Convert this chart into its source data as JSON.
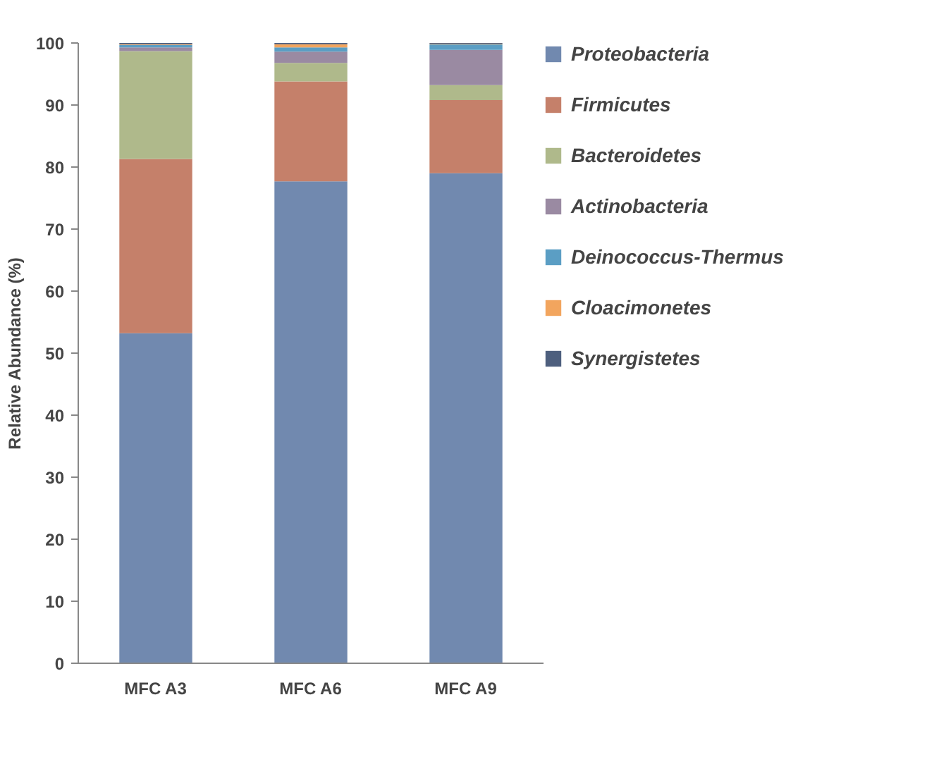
{
  "chart_data": {
    "type": "bar",
    "stacked": true,
    "ylabel": "Relative Abundance (%)",
    "categories": [
      "MFC A3",
      "MFC A6",
      "MFC A9"
    ],
    "ylim": [
      0,
      100
    ],
    "yticks": [
      0,
      10,
      20,
      30,
      40,
      50,
      60,
      70,
      80,
      90,
      100
    ],
    "grid": false,
    "legend": "right",
    "series": [
      {
        "name": "Proteobacteria",
        "color": "#7189af",
        "values": [
          53.2,
          77.7,
          79.0
        ]
      },
      {
        "name": "Firmicutes",
        "color": "#c5806a",
        "values": [
          28.1,
          16.1,
          11.8
        ]
      },
      {
        "name": "Bacteroidetes",
        "color": "#afb98b",
        "values": [
          17.4,
          3.0,
          2.4
        ]
      },
      {
        "name": "Actinobacteria",
        "color": "#9a8aa2",
        "values": [
          0.6,
          1.8,
          5.7
        ]
      },
      {
        "name": "Deinococcus-Thermus",
        "color": "#5b9ec4",
        "values": [
          0.4,
          0.7,
          0.9
        ]
      },
      {
        "name": "Cloacimonetes",
        "color": "#f2a55e",
        "values": [
          0.1,
          0.5,
          0.1
        ]
      },
      {
        "name": "Synergistetes",
        "color": "#4e5f7e",
        "values": [
          0.2,
          0.2,
          0.1
        ]
      }
    ]
  }
}
